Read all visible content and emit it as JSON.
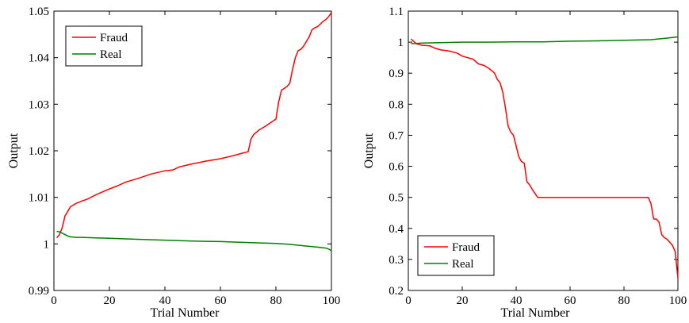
{
  "chart_data": [
    {
      "type": "line",
      "xlabel": "Trial Number",
      "ylabel": "Output",
      "xlim": [
        0,
        100
      ],
      "ylim": [
        0.99,
        1.05
      ],
      "xticks": [
        0,
        20,
        40,
        60,
        80,
        100
      ],
      "yticks": [
        0.99,
        1,
        1.01,
        1.02,
        1.03,
        1.04,
        1.05
      ],
      "ytick_labels": [
        "0.99",
        "1",
        "1.01",
        "1.02",
        "1.03",
        "1.04",
        "1.05"
      ],
      "legend_position": "top-left",
      "series": [
        {
          "name": "Fraud",
          "color": "#ff0000",
          "x": [
            1,
            2,
            3,
            4,
            5,
            6,
            8,
            10,
            12,
            15,
            18,
            20,
            23,
            26,
            30,
            35,
            40,
            43,
            45,
            50,
            55,
            60,
            65,
            68,
            70,
            71,
            72,
            74,
            76,
            78,
            80,
            81,
            82,
            84,
            85,
            86,
            87,
            88,
            89,
            90,
            92,
            93,
            94,
            95,
            96,
            97,
            98,
            99,
            100
          ],
          "y": [
            1.0013,
            1.002,
            1.0035,
            1.006,
            1.007,
            1.008,
            1.0087,
            1.0092,
            1.0096,
            1.0105,
            1.0113,
            1.0118,
            1.0125,
            1.0133,
            1.014,
            1.015,
            1.0157,
            1.0159,
            1.0165,
            1.0172,
            1.0178,
            1.0183,
            1.019,
            1.0195,
            1.0198,
            1.0225,
            1.0235,
            1.0245,
            1.0252,
            1.026,
            1.0268,
            1.0305,
            1.033,
            1.0338,
            1.0345,
            1.0375,
            1.04,
            1.0415,
            1.0418,
            1.0425,
            1.0445,
            1.046,
            1.0464,
            1.0467,
            1.0472,
            1.0478,
            1.0482,
            1.0488,
            1.0497
          ]
        },
        {
          "name": "Real",
          "color": "#008000",
          "x": [
            1,
            2,
            3,
            4,
            5,
            6,
            8,
            10,
            20,
            30,
            40,
            50,
            60,
            70,
            80,
            85,
            90,
            95,
            98,
            99,
            100
          ],
          "y": [
            1.0027,
            1.0026,
            1.0023,
            1.002,
            1.0017,
            1.0015,
            1.0014,
            1.0014,
            1.0012,
            1.001,
            1.0008,
            1.0006,
            1.0005,
            1.0003,
            1.0001,
            0.9999,
            0.9996,
            0.9993,
            0.9991,
            0.9989,
            0.9985
          ]
        }
      ]
    },
    {
      "type": "line",
      "xlabel": "Trial Number",
      "ylabel": "Output",
      "xlim": [
        0,
        100
      ],
      "ylim": [
        0.2,
        1.1
      ],
      "xticks": [
        0,
        20,
        40,
        60,
        80,
        100
      ],
      "yticks": [
        0.2,
        0.3,
        0.4,
        0.5,
        0.6,
        0.7,
        0.8,
        0.9,
        1,
        1.1
      ],
      "ytick_labels": [
        "0.2",
        "0.3",
        "0.4",
        "0.5",
        "0.6",
        "0.7",
        "0.8",
        "0.9",
        "1",
        "1.1"
      ],
      "legend_position": "bottom-left",
      "series": [
        {
          "name": "Fraud",
          "color": "#ff0000",
          "x": [
            1,
            3,
            5,
            8,
            10,
            12,
            15,
            18,
            20,
            22,
            24,
            26,
            28,
            30,
            32,
            33,
            34,
            35,
            36,
            37,
            38,
            39,
            40,
            41,
            42,
            43,
            44,
            45,
            46,
            48,
            50,
            55,
            60,
            65,
            70,
            75,
            80,
            85,
            88,
            89,
            90,
            91,
            92,
            93,
            94,
            95,
            96,
            97,
            98,
            99,
            100
          ],
          "y": [
            1.01,
            0.995,
            0.99,
            0.988,
            0.98,
            0.975,
            0.972,
            0.965,
            0.955,
            0.95,
            0.945,
            0.93,
            0.925,
            0.915,
            0.9,
            0.88,
            0.87,
            0.84,
            0.79,
            0.73,
            0.71,
            0.7,
            0.665,
            0.63,
            0.615,
            0.61,
            0.55,
            0.54,
            0.525,
            0.5,
            0.5,
            0.5,
            0.5,
            0.5,
            0.5,
            0.5,
            0.5,
            0.5,
            0.5,
            0.5,
            0.48,
            0.43,
            0.43,
            0.42,
            0.38,
            0.37,
            0.365,
            0.355,
            0.345,
            0.325,
            0.24
          ]
        },
        {
          "name": "Real",
          "color": "#008000",
          "x": [
            1,
            5,
            10,
            20,
            30,
            40,
            50,
            60,
            70,
            80,
            90,
            95,
            100
          ],
          "y": [
            0.995,
            0.997,
            0.998,
            1.0,
            1.0,
            1.001,
            1.001,
            1.003,
            1.004,
            1.006,
            1.008,
            1.012,
            1.017
          ]
        }
      ]
    }
  ]
}
